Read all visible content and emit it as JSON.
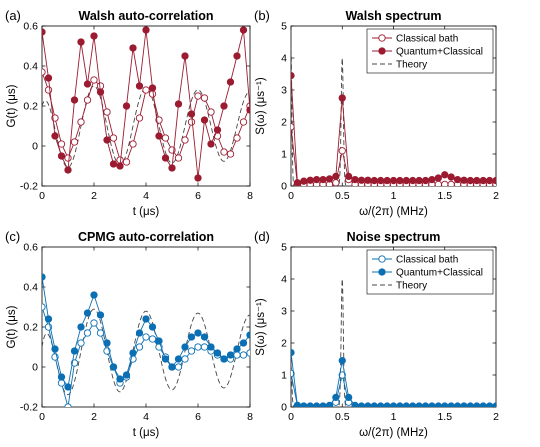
{
  "colors": {
    "red": "#9b1b30",
    "blue": "#0b6fb3",
    "theory": "#444444"
  },
  "chart_data": [
    {
      "id": "a",
      "type": "line",
      "panel_label": "(a)",
      "title": "Walsh auto-correlation",
      "xlabel": "t (μs)",
      "ylabel": "G(t) (μs)",
      "xlim": [
        0,
        8
      ],
      "ylim": [
        -0.2,
        0.6
      ],
      "xticks": [
        0,
        2,
        4,
        6,
        8
      ],
      "yticks": [
        -0.2,
        0,
        0.2,
        0.4,
        0.6
      ],
      "ytick_labels": [
        "-0.2",
        "0",
        "0.2",
        "0.4",
        "0.6"
      ],
      "color_key": "red",
      "grid": false,
      "series": [
        {
          "role": "classical",
          "marker": "open",
          "x": [
            0.0,
            0.25,
            0.5,
            0.75,
            1.0,
            1.25,
            1.5,
            1.75,
            2.0,
            2.25,
            2.5,
            2.75,
            3.0,
            3.25,
            3.5,
            3.75,
            4.0,
            4.25,
            4.5,
            4.75,
            5.0,
            5.25,
            5.5,
            5.75,
            6.0,
            6.25,
            6.5,
            6.75,
            7.0,
            7.25,
            7.5,
            7.75,
            8.0
          ],
          "y": [
            0.37,
            0.28,
            0.14,
            0.01,
            -0.06,
            0.02,
            0.12,
            0.23,
            0.33,
            0.3,
            0.17,
            0.04,
            -0.07,
            -0.08,
            0.01,
            0.14,
            0.28,
            0.26,
            0.13,
            0.04,
            -0.02,
            -0.06,
            0.03,
            0.12,
            0.25,
            0.24,
            0.17,
            0.05,
            -0.03,
            -0.04,
            0.04,
            0.12,
            0.2
          ]
        },
        {
          "role": "quantum",
          "marker": "filled",
          "x": [
            0.0,
            0.25,
            0.5,
            0.75,
            1.0,
            1.25,
            1.5,
            1.75,
            2.0,
            2.25,
            2.5,
            2.75,
            3.0,
            3.25,
            3.5,
            3.75,
            4.0,
            4.25,
            4.5,
            4.75,
            5.0,
            5.25,
            5.5,
            5.75,
            6.0,
            6.25,
            6.5,
            6.75,
            7.0,
            7.25,
            7.5,
            7.75,
            8.0
          ],
          "y": [
            0.57,
            0.34,
            0.05,
            -0.05,
            -0.12,
            0.23,
            0.52,
            0.31,
            0.55,
            0.27,
            0.03,
            -0.09,
            -0.1,
            0.2,
            0.49,
            0.3,
            0.58,
            0.29,
            0.05,
            -0.06,
            -0.11,
            0.21,
            0.45,
            0.16,
            -0.16,
            0.13,
            0.01,
            0.08,
            0.2,
            0.32,
            0.45,
            0.58,
            0.18
          ]
        },
        {
          "role": "theory",
          "curve": "cos",
          "dashed": true,
          "amp": 0.21,
          "offset": 0.1,
          "period_us": 2.0,
          "decay_us": 40,
          "t0": 0.2
        }
      ]
    },
    {
      "id": "b",
      "type": "line",
      "panel_label": "(b)",
      "title": "Walsh spectrum",
      "xlabel": "ω/(2π) (MHz)",
      "ylabel": "S(ω) (μs⁻¹)",
      "xlim": [
        0,
        2
      ],
      "ylim": [
        0,
        5
      ],
      "xticks": [
        0,
        0.5,
        1,
        1.5,
        2
      ],
      "xtick_labels": [
        "0",
        "0.5",
        "1",
        "1.5",
        "2"
      ],
      "yticks": [
        0,
        1,
        2,
        3,
        4,
        5
      ],
      "color_key": "red",
      "grid": false,
      "legend": {
        "location": "top-right",
        "entries": [
          "Classical bath",
          "Quantum+Classical",
          "Theory"
        ]
      },
      "series": [
        {
          "name": "Classical bath",
          "marker": "open",
          "x": [
            0,
            0.0625,
            0.125,
            0.1875,
            0.25,
            0.3125,
            0.375,
            0.4375,
            0.5,
            0.5625,
            0.625,
            0.6875,
            0.75,
            0.8125,
            0.875,
            0.9375,
            1.0,
            1.0625,
            1.125,
            1.1875,
            1.25,
            1.3125,
            1.375,
            1.4375,
            1.5,
            1.5625,
            1.625,
            1.6875,
            1.75,
            1.8125,
            1.875,
            1.9375,
            2.0
          ],
          "y": [
            1.85,
            0.05,
            0.05,
            0.05,
            0.05,
            0.05,
            0.05,
            0.1,
            1.1,
            0.2,
            0.05,
            0.05,
            0.05,
            0.05,
            0.05,
            0.05,
            0.05,
            0.05,
            0.05,
            0.05,
            0.05,
            0.05,
            0.05,
            0.05,
            0.05,
            0.05,
            0.05,
            0.05,
            0.05,
            0.05,
            0.05,
            0.05,
            0.05
          ]
        },
        {
          "name": "Quantum+Classical",
          "marker": "filled",
          "x": [
            0,
            0.0625,
            0.125,
            0.1875,
            0.25,
            0.3125,
            0.375,
            0.4375,
            0.5,
            0.5625,
            0.625,
            0.6875,
            0.75,
            0.8125,
            0.875,
            0.9375,
            1.0,
            1.0625,
            1.125,
            1.1875,
            1.25,
            1.3125,
            1.375,
            1.4375,
            1.5,
            1.5625,
            1.625,
            1.6875,
            1.75,
            1.8125,
            1.875,
            1.9375,
            2.0
          ],
          "y": [
            3.45,
            0.1,
            0.15,
            0.18,
            0.2,
            0.2,
            0.22,
            0.3,
            2.75,
            0.3,
            0.2,
            0.18,
            0.18,
            0.17,
            0.17,
            0.17,
            0.17,
            0.17,
            0.17,
            0.17,
            0.17,
            0.17,
            0.2,
            0.25,
            0.35,
            0.28,
            0.2,
            0.18,
            0.17,
            0.17,
            0.17,
            0.17,
            0.17
          ]
        },
        {
          "name": "Theory",
          "curve": "peaks",
          "dashed": true,
          "peaks": [
            {
              "center": 0.0,
              "height": 4.3,
              "width": 0.012
            },
            {
              "center": 0.5,
              "height": 4.0,
              "width": 0.015
            }
          ]
        }
      ]
    },
    {
      "id": "c",
      "type": "line",
      "panel_label": "(c)",
      "title": "CPMG auto-correlation",
      "xlabel": "t (μs)",
      "ylabel": "G(t) (μs)",
      "xlim": [
        0,
        8
      ],
      "ylim": [
        -0.2,
        0.6
      ],
      "xticks": [
        0,
        2,
        4,
        6,
        8
      ],
      "yticks": [
        -0.2,
        0,
        0.2,
        0.4,
        0.6
      ],
      "ytick_labels": [
        "-0.2",
        "0",
        "0.2",
        "0.4",
        "0.6"
      ],
      "color_key": "blue",
      "grid": false,
      "series": [
        {
          "role": "classical",
          "marker": "open",
          "x": [
            0.0,
            0.25,
            0.5,
            0.75,
            1.0,
            1.25,
            1.5,
            1.75,
            2.0,
            2.25,
            2.5,
            2.75,
            3.0,
            3.25,
            3.5,
            3.75,
            4.0,
            4.25,
            4.5,
            4.75,
            5.0,
            5.25,
            5.5,
            5.75,
            6.0,
            6.25,
            6.5,
            6.75,
            7.0,
            7.25,
            7.5,
            7.75,
            8.0
          ],
          "y": [
            0.3,
            0.2,
            0.05,
            -0.08,
            -0.2,
            0.02,
            0.12,
            0.17,
            0.22,
            0.17,
            0.08,
            0.0,
            -0.08,
            -0.05,
            0.04,
            0.1,
            0.15,
            0.14,
            0.1,
            0.05,
            0.0,
            0.0,
            0.04,
            0.08,
            0.1,
            0.1,
            0.08,
            0.06,
            0.04,
            0.04,
            0.06,
            0.06,
            0.07
          ]
        },
        {
          "role": "quantum",
          "marker": "filled",
          "x": [
            0.0,
            0.25,
            0.5,
            0.75,
            1.0,
            1.25,
            1.5,
            1.75,
            2.0,
            2.25,
            2.5,
            2.75,
            3.0,
            3.25,
            3.5,
            3.75,
            4.0,
            4.25,
            4.5,
            4.75,
            5.0,
            5.25,
            5.5,
            5.75,
            6.0,
            6.25,
            6.5,
            6.75,
            7.0,
            7.25,
            7.5,
            7.75,
            8.0
          ],
          "y": [
            0.45,
            0.24,
            0.09,
            -0.05,
            -0.1,
            0.08,
            0.2,
            0.27,
            0.36,
            0.26,
            0.12,
            0.0,
            -0.06,
            -0.04,
            0.07,
            0.17,
            0.24,
            0.2,
            0.13,
            0.04,
            0.0,
            0.04,
            0.1,
            0.15,
            0.17,
            0.15,
            0.1,
            0.07,
            0.04,
            0.06,
            0.09,
            0.12,
            0.16
          ]
        },
        {
          "role": "theory",
          "curve": "cos",
          "dashed": true,
          "amp": 0.22,
          "offset": 0.08,
          "period_us": 2.0,
          "decay_us": 40,
          "t0": 0.1
        }
      ]
    },
    {
      "id": "d",
      "type": "line",
      "panel_label": "(d)",
      "title": "Noise spectrum",
      "xlabel": "ω/(2π) (MHz)",
      "ylabel": "S(ω) (μs⁻¹)",
      "xlim": [
        0,
        2
      ],
      "ylim": [
        0,
        5
      ],
      "xticks": [
        0,
        0.5,
        1,
        1.5,
        2
      ],
      "xtick_labels": [
        "0",
        "0.5",
        "1",
        "1.5",
        "2"
      ],
      "yticks": [
        0,
        1,
        2,
        3,
        4,
        5
      ],
      "color_key": "blue",
      "grid": false,
      "legend": {
        "location": "top-right",
        "entries": [
          "Classical bath",
          "Quantum+Classical",
          "Theory"
        ]
      },
      "series": [
        {
          "name": "Classical bath",
          "marker": "open",
          "x": [
            0,
            0.0625,
            0.125,
            0.1875,
            0.25,
            0.3125,
            0.375,
            0.4375,
            0.5,
            0.5625,
            0.625,
            0.6875,
            0.75,
            0.8125,
            0.875,
            0.9375,
            1.0,
            1.0625,
            1.125,
            1.1875,
            1.25,
            1.3125,
            1.375,
            1.4375,
            1.5,
            1.5625,
            1.625,
            1.6875,
            1.75,
            1.8125,
            1.875,
            1.9375,
            2.0
          ],
          "y": [
            1.05,
            0.05,
            0.02,
            0.02,
            0.02,
            0.02,
            0.03,
            0.15,
            1.0,
            0.15,
            0.03,
            0.02,
            0.02,
            0.02,
            0.02,
            0.02,
            0.02,
            0.02,
            0.02,
            0.02,
            0.02,
            0.02,
            0.02,
            0.02,
            0.02,
            0.02,
            0.02,
            0.02,
            0.02,
            0.02,
            0.02,
            0.02,
            0.02
          ]
        },
        {
          "name": "Quantum+Classical",
          "marker": "filled",
          "x": [
            0,
            0.0625,
            0.125,
            0.1875,
            0.25,
            0.3125,
            0.375,
            0.4375,
            0.5,
            0.5625,
            0.625,
            0.6875,
            0.75,
            0.8125,
            0.875,
            0.9375,
            1.0,
            1.0625,
            1.125,
            1.1875,
            1.25,
            1.3125,
            1.375,
            1.4375,
            1.5,
            1.5625,
            1.625,
            1.6875,
            1.75,
            1.8125,
            1.875,
            1.9375,
            2.0
          ],
          "y": [
            1.7,
            0.05,
            0.03,
            0.03,
            0.03,
            0.03,
            0.05,
            0.3,
            1.45,
            0.3,
            0.05,
            0.03,
            0.03,
            0.03,
            0.03,
            0.03,
            0.03,
            0.03,
            0.03,
            0.03,
            0.03,
            0.03,
            0.03,
            0.03,
            0.03,
            0.03,
            0.03,
            0.03,
            0.03,
            0.03,
            0.03,
            0.03,
            0.03
          ]
        },
        {
          "name": "Theory",
          "curve": "peaks",
          "dashed": true,
          "peaks": [
            {
              "center": 0.0,
              "height": 1.3,
              "width": 0.012
            },
            {
              "center": 0.5,
              "height": 4.0,
              "width": 0.015
            }
          ]
        }
      ]
    }
  ]
}
